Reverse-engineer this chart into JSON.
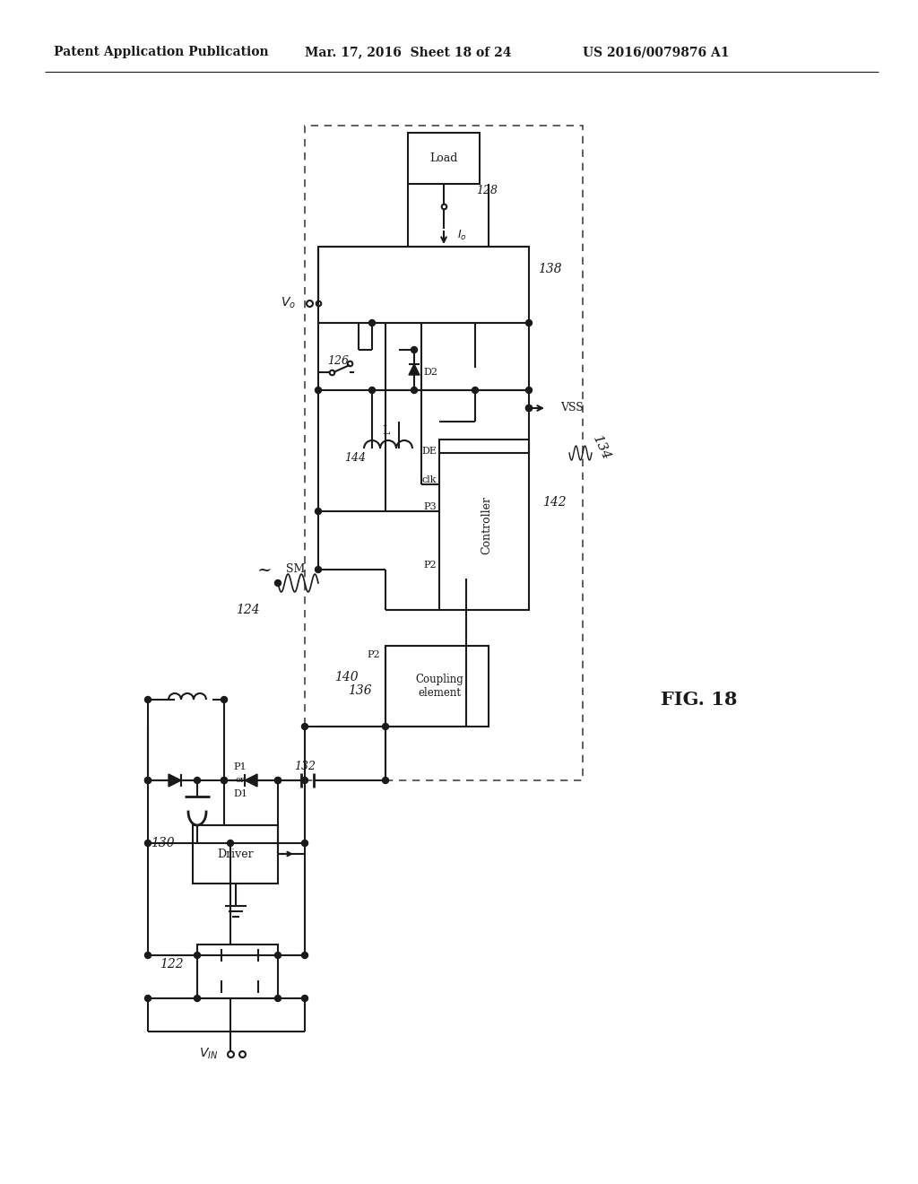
{
  "bg_color": "#ffffff",
  "header_text1": "Patent Application Publication",
  "header_text2": "Mar. 17, 2016  Sheet 18 of 24",
  "header_text3": "US 2016/0079876 A1",
  "fig_label": "FIG. 18",
  "line_color": "#1a1a1a",
  "lw": 1.5
}
